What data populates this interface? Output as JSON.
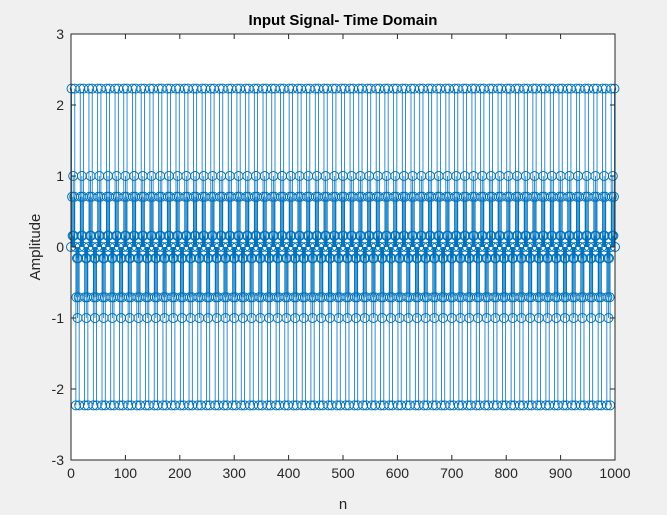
{
  "chart_data": {
    "type": "stem",
    "title": "Input Signal- Time Domain",
    "xlabel": "n",
    "ylabel": "Amplitude",
    "xlim": [
      0,
      1000
    ],
    "ylim": [
      -3,
      3
    ],
    "xticks": [
      0,
      100,
      200,
      300,
      400,
      500,
      600,
      700,
      800,
      900,
      1000
    ],
    "yticks": [
      -3,
      -2,
      -1,
      0,
      1,
      2,
      3
    ],
    "xtick_labels": [
      "0",
      "100",
      "200",
      "300",
      "400",
      "500",
      "600",
      "700",
      "800",
      "900",
      "1000"
    ],
    "ytick_labels": [
      "-3",
      "-2",
      "-1",
      "0",
      "1",
      "2",
      "3"
    ],
    "grid": false,
    "marker": "circle",
    "series": [
      {
        "color": "#0072bd",
        "sample_count": 1001,
        "x_start": 0,
        "x_step": 1,
        "components": [
          {
            "amplitude": 1,
            "cycles_per_sample": 0.0625
          },
          {
            "amplitude": 1,
            "cycles_per_sample": 0.1875
          },
          {
            "amplitude": 1,
            "cycles_per_sample": 0.3125
          }
        ]
      }
    ]
  }
}
